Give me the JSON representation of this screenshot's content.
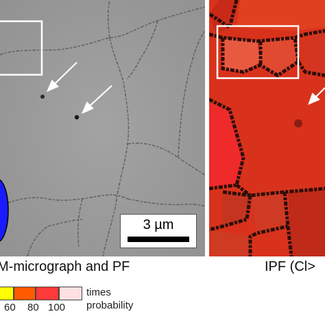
{
  "scale_bar": {
    "label": "3 µm"
  },
  "captions": {
    "left": "M-micrograph and PF",
    "right": "IPF (Cl>"
  },
  "legend": {
    "ticks": [
      "60",
      "80",
      "100"
    ],
    "label_line1": "times",
    "label_line2": "probability",
    "colors": [
      "#ffff00",
      "#ff5a00",
      "#ff3a3a",
      "#ff8080",
      "#ffe0e0"
    ]
  }
}
